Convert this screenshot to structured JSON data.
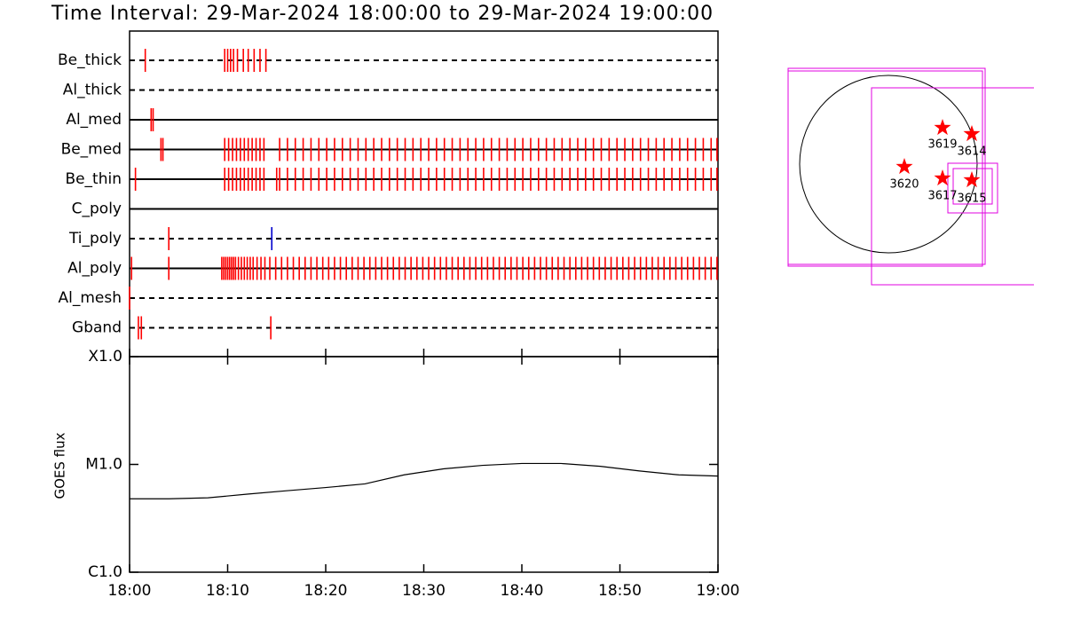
{
  "title": "Time Interval: 29-Mar-2024 18:00:00 to 29-Mar-2024 19:00:00",
  "chart_data": [
    {
      "type": "timeline",
      "xlim": [
        0,
        60
      ],
      "rows": [
        {
          "label": "Be_thick",
          "line": "dashed",
          "marks": [
            {
              "color": "#ff0000",
              "x": [
                1.6,
                9.7,
                10.0,
                10.3,
                10.6,
                11.0,
                11.6,
                12.1,
                12.7,
                13.3,
                13.9
              ]
            }
          ]
        },
        {
          "label": "Al_thick",
          "line": "dashed",
          "marks": []
        },
        {
          "label": "Al_med",
          "line": "solid",
          "marks": [
            {
              "color": "#ff0000",
              "x": [
                2.2,
                2.4
              ]
            }
          ]
        },
        {
          "label": "Be_med",
          "line": "solid",
          "marks": [
            {
              "color": "#ff0000",
              "x": [
                3.2,
                3.4,
                9.7,
                10.1,
                10.5,
                10.9,
                11.3,
                11.7,
                12.1,
                12.5,
                12.9,
                13.3,
                13.7,
                15.3,
                16.1,
                16.9,
                17.7,
                18.5,
                19.3,
                20.1,
                20.9,
                21.7,
                22.5,
                23.3,
                24.1,
                24.9,
                25.7,
                26.5,
                27.3,
                28.1,
                28.9,
                29.7,
                30.5,
                31.3,
                32.1,
                32.9,
                33.7,
                34.5,
                35.3,
                36.1,
                36.9,
                37.7,
                38.5,
                39.3,
                40.1,
                40.9,
                41.7,
                42.5,
                43.3,
                44.1,
                44.9,
                45.7,
                46.5,
                47.3,
                48.1,
                48.9,
                49.7,
                50.5,
                51.3,
                52.1,
                52.9,
                53.7,
                54.5,
                55.3,
                56.1,
                56.9,
                57.7,
                58.5,
                59.3,
                59.9
              ]
            }
          ]
        },
        {
          "label": "Be_thin",
          "line": "solid",
          "marks": [
            {
              "color": "#ff0000",
              "x": [
                0.6,
                9.7,
                10.1,
                10.5,
                10.9,
                11.3,
                11.7,
                12.1,
                12.5,
                12.9,
                13.3,
                13.7,
                15.0,
                15.3,
                16.1,
                16.9,
                17.7,
                18.5,
                19.3,
                20.1,
                20.9,
                21.7,
                22.5,
                23.3,
                24.1,
                24.9,
                25.7,
                26.5,
                27.3,
                28.1,
                28.9,
                29.7,
                30.5,
                31.3,
                32.1,
                32.9,
                33.7,
                34.5,
                35.3,
                36.1,
                36.9,
                37.7,
                38.5,
                39.3,
                40.1,
                40.9,
                41.7,
                42.5,
                43.3,
                44.1,
                44.9,
                45.7,
                46.5,
                47.3,
                48.1,
                48.9,
                49.7,
                50.5,
                51.3,
                52.1,
                52.9,
                53.7,
                54.5,
                55.3,
                56.1,
                56.9,
                57.7,
                58.5,
                59.3,
                59.9
              ]
            }
          ]
        },
        {
          "label": "C_poly",
          "line": "solid",
          "marks": []
        },
        {
          "label": "Ti_poly",
          "line": "dashed",
          "marks": [
            {
              "color": "#ff0000",
              "x": [
                4.0
              ]
            },
            {
              "color": "#0000cc",
              "x": [
                14.5
              ]
            }
          ]
        },
        {
          "label": "Al_poly",
          "line": "solid",
          "marks": [
            {
              "color": "#ff0000",
              "x": [
                0.2,
                4.0,
                9.4,
                9.6,
                9.8,
                10.0,
                10.2,
                10.4,
                10.6,
                10.8,
                11.1,
                11.4,
                11.7,
                12.0,
                12.3,
                12.6,
                13.0,
                13.4,
                13.8,
                14.3,
                14.9,
                15.5,
                16.1,
                16.7,
                17.3,
                17.9,
                18.5,
                19.1,
                19.7,
                20.3,
                20.9,
                21.5,
                22.1,
                22.7,
                23.3,
                23.9,
                24.5,
                25.1,
                25.7,
                26.3,
                26.9,
                27.5,
                28.1,
                28.7,
                29.3,
                29.9,
                30.5,
                31.1,
                31.7,
                32.3,
                32.9,
                33.5,
                34.1,
                34.7,
                35.3,
                35.9,
                36.5,
                37.1,
                37.7,
                38.3,
                38.9,
                39.5,
                40.1,
                40.7,
                41.3,
                41.9,
                42.5,
                43.1,
                43.7,
                44.3,
                44.9,
                45.5,
                46.1,
                46.7,
                47.3,
                47.9,
                48.5,
                49.1,
                49.7,
                50.3,
                50.9,
                51.5,
                52.1,
                52.7,
                53.3,
                53.9,
                54.5,
                55.1,
                55.7,
                56.3,
                56.9,
                57.5,
                58.1,
                58.7,
                59.3,
                59.9
              ]
            }
          ]
        },
        {
          "label": "Al_mesh",
          "line": "dashed",
          "marks": [
            {
              "color": "#ff0000",
              "x": [
                0.0
              ]
            }
          ]
        },
        {
          "label": "Gband",
          "line": "dashed",
          "marks": [
            {
              "color": "#ff0000",
              "x": [
                0.9,
                1.2,
                14.4
              ]
            }
          ]
        }
      ]
    },
    {
      "type": "line",
      "ylabel": "GOES flux",
      "log_y": true,
      "color": "#000000",
      "x": [
        0,
        4,
        8,
        12,
        16,
        20,
        24,
        28,
        32,
        36,
        40,
        44,
        48,
        52,
        56,
        60
      ],
      "values": [
        4.8e-06,
        4.8e-06,
        4.9e-06,
        5.3e-06,
        5.7e-06,
        6.1e-06,
        6.6e-06,
        8e-06,
        9.1e-06,
        9.8e-06,
        1.02e-05,
        1.02e-05,
        9.6e-06,
        8.7e-06,
        8e-06,
        7.8e-06
      ],
      "xlim": [
        0,
        60
      ],
      "xticks": [
        {
          "value": 0,
          "label": "18:00"
        },
        {
          "value": 10,
          "label": "18:10"
        },
        {
          "value": 20,
          "label": "18:20"
        },
        {
          "value": 30,
          "label": "18:30"
        },
        {
          "value": 40,
          "label": "18:40"
        },
        {
          "value": 50,
          "label": "18:50"
        },
        {
          "value": 60,
          "label": "19:00"
        }
      ],
      "ylim": [
        1e-06,
        0.0001
      ],
      "yticks": [
        {
          "value": 1e-06,
          "label": "C1.0"
        },
        {
          "value": 1e-05,
          "label": "M1.0"
        },
        {
          "value": 0.0001,
          "label": "X1.0"
        }
      ]
    }
  ],
  "map": {
    "regions": [
      "3619",
      "3614",
      "3620",
      "3617",
      "3615"
    ]
  }
}
